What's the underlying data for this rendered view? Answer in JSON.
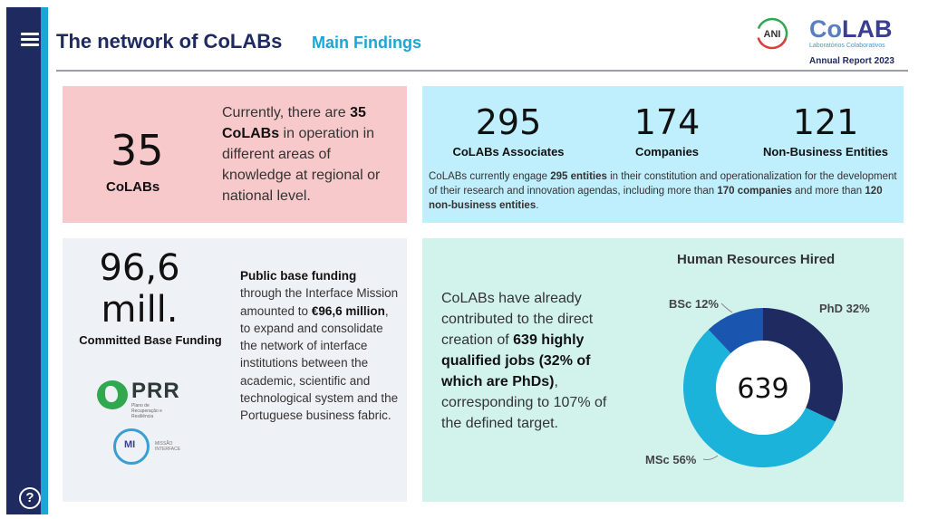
{
  "header": {
    "title": "The network of CoLABs",
    "subtitle": "Main Findings",
    "ani_logo_text": "ANI",
    "colab_logo_text_1": "Co",
    "colab_logo_text_2": "LAB",
    "colab_tagline": "Laboratórios Colaborativos",
    "annual_report": "Annual Report 2023"
  },
  "card_colabs": {
    "value": "35",
    "label": "CoLABs",
    "text_1": "Currently, there are ",
    "text_bold": "35 CoLABs",
    "text_2": " in operation in different areas of knowledge at regional or national level."
  },
  "card_associates": {
    "stats": [
      {
        "value": "295",
        "label": "CoLABs Associates"
      },
      {
        "value": "174",
        "label": "Companies"
      },
      {
        "value": "121",
        "label": "Non-Business Entities"
      }
    ],
    "text_1": "CoLABs currently engage ",
    "text_b1": "295 entities",
    "text_2": " in their constitution and operationalization for the development of their research and innovation agendas, including more than ",
    "text_b2": "170 companies",
    "text_3": " and more than ",
    "text_b3": "120 non-business entities",
    "text_4": "."
  },
  "card_funding": {
    "value_line1": "96,6",
    "value_line2": "mill.",
    "label": "Committed Base Funding",
    "text_b1": "Public base funding",
    "text_1": " through the Interface Mission amounted to ",
    "text_b2": "€96,6 million",
    "text_2": ", to expand and consolidate the network of interface institutions between the academic, scientific and technological system and the Portuguese business fabric.",
    "prr_logo": "PRR",
    "prr_sub": "Plano de Recuperação e Resiliência",
    "mi_logo": "MI",
    "mi_sub": "MISSÃO INTERFACE"
  },
  "card_hr": {
    "text_1": "CoLABs have already contributed to the direct creation of ",
    "text_b1": "639 highly qualified jobs (32% of which are PhDs)",
    "text_2": ", corresponding to 107% of the defined target.",
    "chart_title": "Human Resources Hired",
    "center_value": "639",
    "labels": {
      "phd": "PhD 32%",
      "msc": "MSc 56%",
      "bsc": "BSc 12%"
    }
  },
  "chart_data": {
    "type": "pie",
    "title": "Human Resources Hired",
    "categories": [
      "PhD",
      "MSc",
      "BSc"
    ],
    "values": [
      32,
      56,
      12
    ],
    "unit": "%",
    "colors": [
      "#1e2a60",
      "#1bb3d9",
      "#1a56b0"
    ],
    "center_label": "639",
    "donut": true
  },
  "colors": {
    "sidebar": "#1e2a60",
    "accent": "#1aa7d6",
    "card_pink": "#f7c9cb",
    "card_blue": "#bfeefc",
    "card_grey": "#eef1f6",
    "card_mint": "#d2f3ec"
  },
  "icons": {
    "menu": "hamburger-icon",
    "help": "help-icon"
  }
}
